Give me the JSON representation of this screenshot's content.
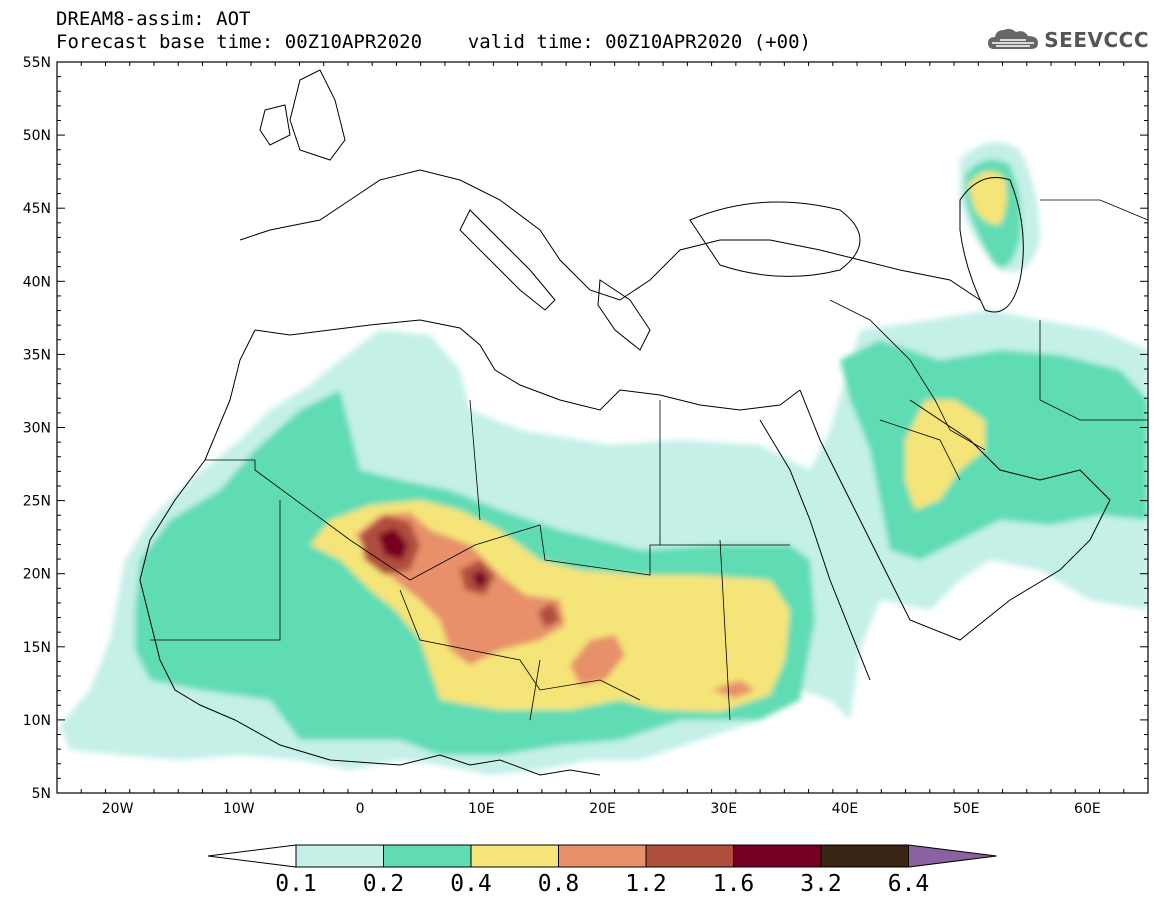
{
  "header": {
    "title_line1": "DREAM8-assim: AOT",
    "title_line2": "Forecast base time: 00Z10APR2020    valid time: 00Z10APR2020 (+00)"
  },
  "logo": {
    "text": "SEEVCCC",
    "icon": "cloud-icon"
  },
  "map": {
    "lon_range": [
      -25,
      65
    ],
    "lat_range": [
      5,
      55
    ],
    "lat_ticks": [
      "55N",
      "50N",
      "45N",
      "40N",
      "35N",
      "30N",
      "25N",
      "20N",
      "15N",
      "10N",
      "5N"
    ],
    "lon_ticks": [
      "20W",
      "10W",
      "0",
      "10E",
      "20E",
      "30E",
      "40E",
      "50E",
      "60E"
    ],
    "frame_color": "#000000",
    "coastline_color": "#000000"
  },
  "colorbar": {
    "levels": [
      "0.1",
      "0.2",
      "0.4",
      "0.8",
      "1.2",
      "1.6",
      "3.2",
      "6.4"
    ],
    "colors": [
      "#ffffff",
      "#c4f0e8",
      "#5fdcb4",
      "#f5e478",
      "#e7906a",
      "#b04e3e",
      "#770022",
      "#3a2515",
      "#8a62a0"
    ]
  }
}
